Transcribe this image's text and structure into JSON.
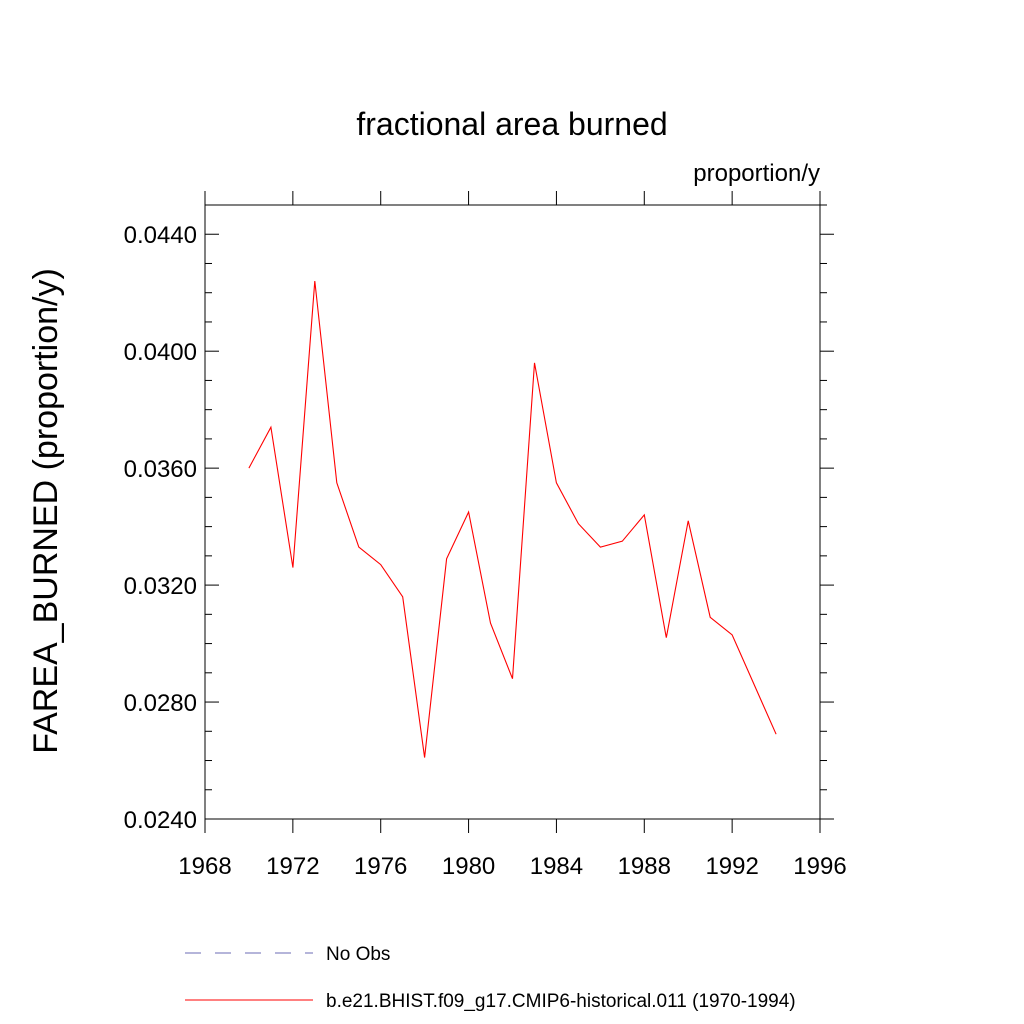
{
  "chart_data": {
    "type": "line",
    "title": "fractional area burned",
    "units_label": "proportion/y",
    "ylabel": "FAREA_BURNED  (proportion/y)",
    "xlabel": "",
    "xlim": [
      1968,
      1996
    ],
    "ylim": [
      0.024,
      0.045
    ],
    "x_ticks": [
      "1968",
      "1972",
      "1976",
      "1980",
      "1984",
      "1988",
      "1992",
      "1996"
    ],
    "y_ticks": [
      "0.0240",
      "0.0280",
      "0.0320",
      "0.0360",
      "0.0400",
      "0.0440"
    ],
    "grid": false,
    "legend_position": "bottom",
    "series": [
      {
        "name": "No Obs",
        "color": "#6b6bb5",
        "style": "dashed",
        "x": [],
        "y": []
      },
      {
        "name": "b.e21.BHIST.f09_g17.CMIP6-historical.011 (1970-1994)",
        "color": "#ff0000",
        "style": "solid",
        "x": [
          1970,
          1971,
          1972,
          1973,
          1974,
          1975,
          1976,
          1977,
          1978,
          1979,
          1980,
          1981,
          1982,
          1983,
          1984,
          1985,
          1986,
          1987,
          1988,
          1989,
          1990,
          1991,
          1992,
          1993,
          1994
        ],
        "y": [
          0.036,
          0.0374,
          0.0326,
          0.0424,
          0.0355,
          0.0333,
          0.0327,
          0.0316,
          0.0261,
          0.0329,
          0.0345,
          0.0307,
          0.0288,
          0.0396,
          0.0355,
          0.0341,
          0.0333,
          0.0335,
          0.0344,
          0.0302,
          0.0342,
          0.0309,
          0.0303,
          0.0286,
          0.0269
        ]
      }
    ]
  }
}
